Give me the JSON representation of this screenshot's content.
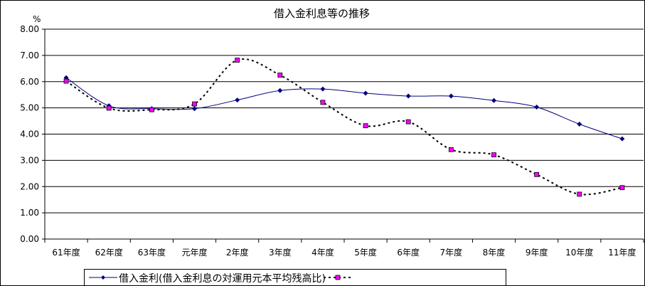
{
  "title": "借入金利息等の推移",
  "unit": "%",
  "chart_data": {
    "type": "line",
    "title": "借入金利息等の推移",
    "ylabel": "%",
    "xlabel": "",
    "categories": [
      "61年度",
      "62年度",
      "63年度",
      "元年度",
      "2年度",
      "3年度",
      "4年度",
      "5年度",
      "6年度",
      "7年度",
      "8年度",
      "9年度",
      "10年度",
      "11年度"
    ],
    "ylim": [
      0,
      8
    ],
    "yticks": [
      "0.00",
      "1.00",
      "2.00",
      "3.00",
      "4.00",
      "5.00",
      "6.00",
      "7.00",
      "8.00"
    ],
    "grid": true,
    "legend_position": "bottom",
    "series": [
      {
        "name": "借入金利(借入金利息の対運用元本平均残高比)",
        "color": "#000080",
        "style": "solid",
        "marker": "diamond",
        "values": [
          6.15,
          5.08,
          4.97,
          4.97,
          5.3,
          5.66,
          5.72,
          5.56,
          5.45,
          5.45,
          5.28,
          5.03,
          4.38,
          3.82
        ]
      },
      {
        "name": "",
        "color": "#000000",
        "marker_color": "#ff00ff",
        "style": "dotted",
        "marker": "square",
        "values": [
          6.02,
          4.99,
          4.93,
          5.15,
          6.82,
          6.25,
          5.21,
          4.32,
          4.47,
          3.41,
          3.21,
          2.46,
          1.71,
          1.96
        ]
      }
    ]
  },
  "legend": {
    "label": "借入金利(借入金利息の対運用元本平均残高比)"
  }
}
